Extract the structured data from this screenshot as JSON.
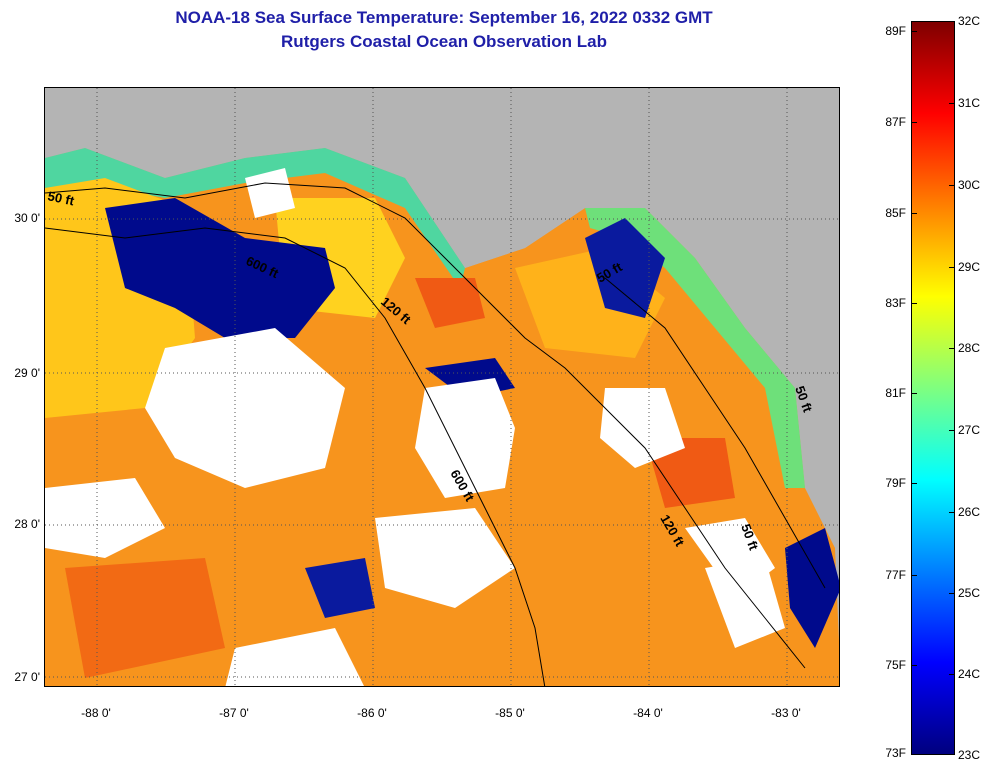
{
  "header": {
    "title": "NOAA-18 Sea Surface Temperature:  September 16, 2022 0332 GMT",
    "subtitle": "Rutgers Coastal Ocean Observation Lab"
  },
  "map": {
    "lat_labels": [
      "30 0'",
      "29 0'",
      "28 0'",
      "27 0'"
    ],
    "lon_labels": [
      "-88 0'",
      "-87 0'",
      "-86 0'",
      "-85 0'",
      "-84 0'",
      "-83 0'"
    ],
    "contour_labels": [
      "50 ft",
      "600 ft",
      "120 ft",
      "50 ft",
      "600 ft",
      "120 ft",
      "50 ft",
      "50 ft"
    ],
    "colors": {
      "land": "#b4b4b4",
      "cloud": "#ffffff",
      "cold": "#00008b",
      "warm": "#ff8c00"
    }
  },
  "colorbar": {
    "fahrenheit": [
      "89F",
      "87F",
      "85F",
      "83F",
      "81F",
      "79F",
      "77F",
      "75F",
      "73F"
    ],
    "celsius": [
      "32C",
      "31C",
      "30C",
      "29C",
      "28C",
      "27C",
      "26C",
      "25C",
      "24C",
      "23C"
    ]
  }
}
